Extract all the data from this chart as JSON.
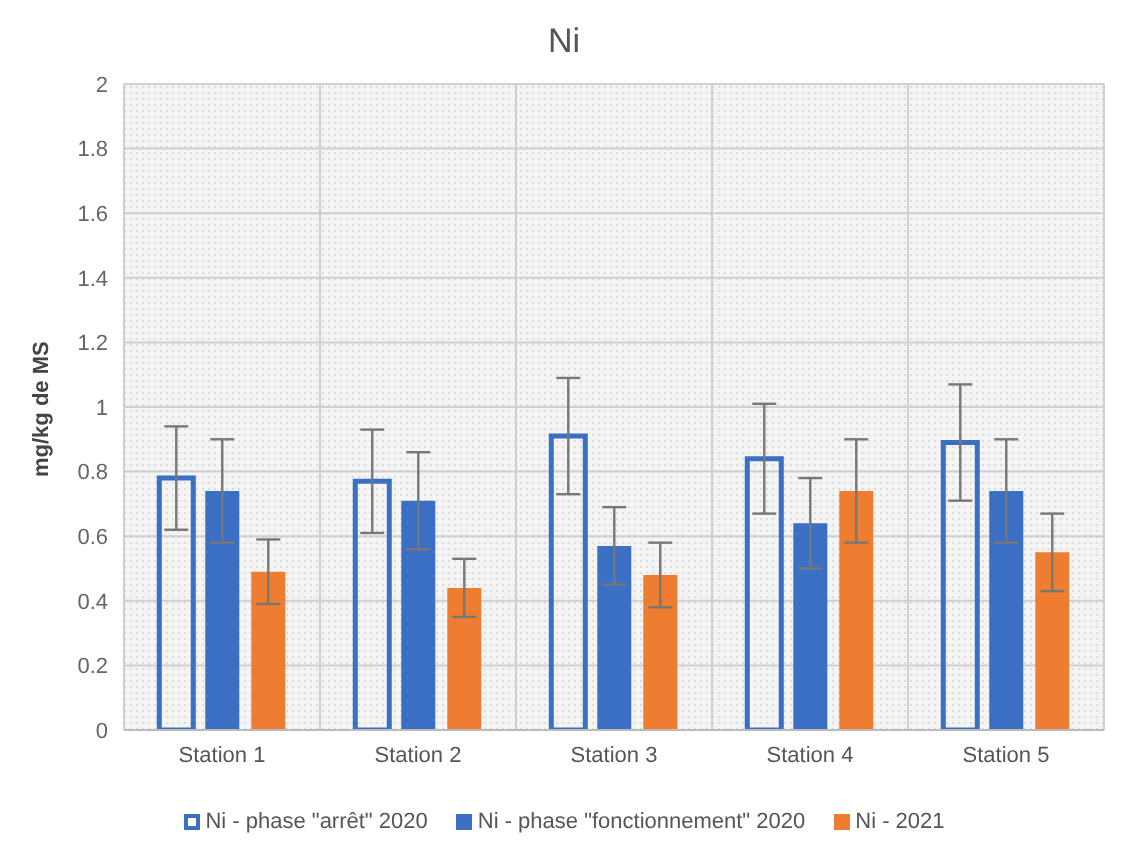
{
  "chart_data": {
    "type": "bar",
    "title": "Ni",
    "ylabel": "mg/kg de MS",
    "categories": [
      "Station 1",
      "Station 2",
      "Station 3",
      "Station 4",
      "Station 5"
    ],
    "series": [
      {
        "name": "Ni - phase \"arrêt\" 2020",
        "color": "#3a6fc4",
        "line_style": "solid",
        "values": [
          0.78,
          0.77,
          0.91,
          0.84,
          0.89
        ],
        "errors": [
          0.16,
          0.16,
          0.18,
          0.17,
          0.18
        ]
      },
      {
        "name": "Ni - phase \"fonctionnement\" 2020",
        "color": "#3a6fc4",
        "values": [
          0.74,
          0.71,
          0.57,
          0.64,
          0.74
        ],
        "errors": [
          0.16,
          0.15,
          0.12,
          0.14,
          0.16
        ]
      },
      {
        "name": "Ni - 2021",
        "color": "#ef7d31",
        "values": [
          0.49,
          0.44,
          0.48,
          0.74,
          0.55
        ],
        "errors": [
          0.1,
          0.09,
          0.1,
          0.16,
          0.12
        ]
      }
    ],
    "ylim": [
      0,
      2
    ],
    "yticks": [
      0,
      0.2,
      0.4,
      0.6,
      0.8,
      1,
      1.2,
      1.4,
      1.6,
      1.8,
      2
    ],
    "grid": true,
    "legend": "bottom"
  }
}
